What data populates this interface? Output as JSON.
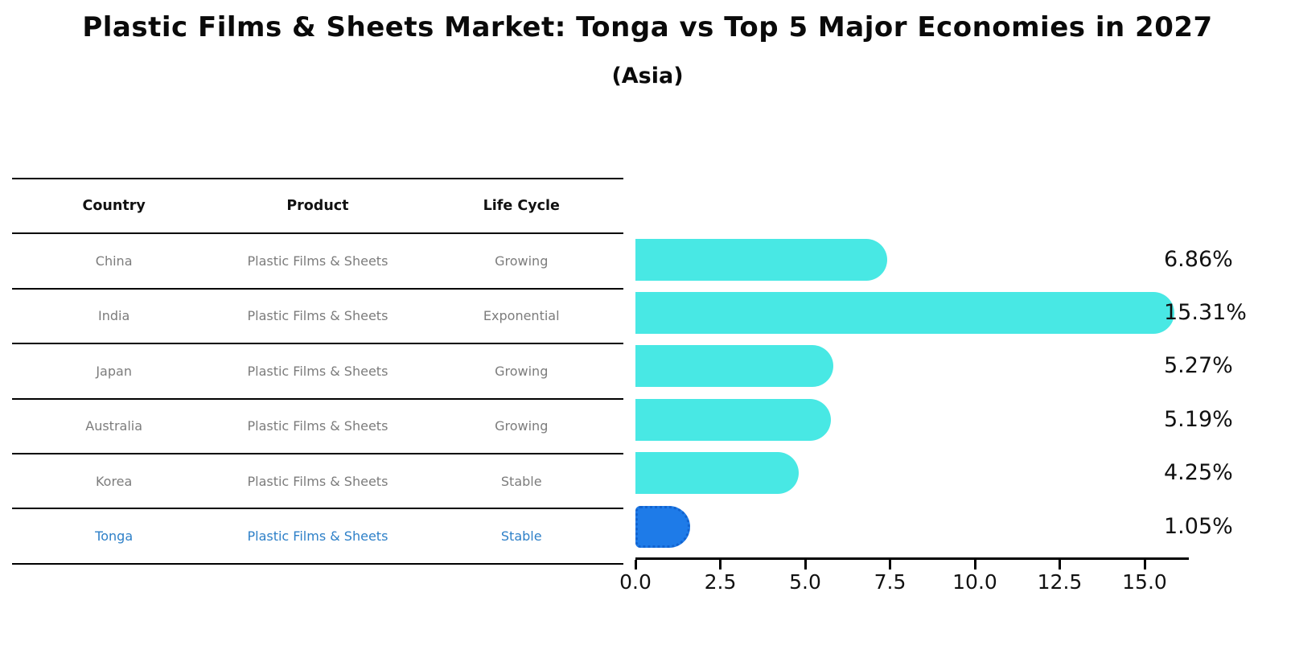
{
  "header": {
    "title": "Plastic Films & Sheets Market: Tonga vs Top 5 Major Economies in 2027",
    "subtitle": "(Asia)"
  },
  "table": {
    "headers": [
      "Country",
      "Product",
      "Life Cycle"
    ]
  },
  "chart_data": {
    "type": "bar",
    "orientation": "horizontal",
    "title": "Plastic Films & Sheets Market: Tonga vs Top 5 Major Economies in 2027",
    "subtitle": "(Asia)",
    "categories": [
      "China",
      "India",
      "Japan",
      "Australia",
      "Korea",
      "Tonga"
    ],
    "values": [
      6.86,
      15.31,
      5.27,
      5.19,
      4.25,
      1.05
    ],
    "value_labels": [
      "6.86%",
      "15.31%",
      "5.27%",
      "5.19%",
      "4.25%",
      "1.05%"
    ],
    "rows": [
      {
        "country": "China",
        "product": "Plastic Films & Sheets",
        "life_cycle": "Growing",
        "value": 6.86,
        "value_label": "6.86%",
        "highlight": false
      },
      {
        "country": "India",
        "product": "Plastic Films & Sheets",
        "life_cycle": "Exponential",
        "value": 15.31,
        "value_label": "15.31%",
        "highlight": false
      },
      {
        "country": "Japan",
        "product": "Plastic Films & Sheets",
        "life_cycle": "Growing",
        "value": 5.27,
        "value_label": "5.27%",
        "highlight": false
      },
      {
        "country": "Australia",
        "product": "Plastic Films & Sheets",
        "life_cycle": "Growing",
        "value": 5.19,
        "value_label": "5.19%",
        "highlight": false
      },
      {
        "country": "Korea",
        "product": "Plastic Films & Sheets",
        "life_cycle": "Stable",
        "value": 4.25,
        "value_label": "4.25%",
        "highlight": false
      },
      {
        "country": "Tonga",
        "product": "Plastic Films & Sheets",
        "life_cycle": "Stable",
        "value": 1.05,
        "value_label": "1.05%",
        "highlight": true
      }
    ],
    "x_ticks": [
      0.0,
      2.5,
      5.0,
      7.5,
      10.0,
      12.5,
      15.0
    ],
    "x_tick_labels": [
      "0.0",
      "2.5",
      "5.0",
      "7.5",
      "10.0",
      "12.5",
      "15.0"
    ],
    "xlim": [
      0,
      16.3
    ],
    "xlabel": "",
    "ylabel": "",
    "grid": false,
    "legend": false
  },
  "colors": {
    "bar": "#48e8e4",
    "bar_highlight": "#1e7be8",
    "bar_highlight_border": "#1263cf",
    "highlight_text": "#2e80c8",
    "row_text": "#7c7c7c",
    "heading_text": "#0a0a0a",
    "axis": "#000000"
  }
}
